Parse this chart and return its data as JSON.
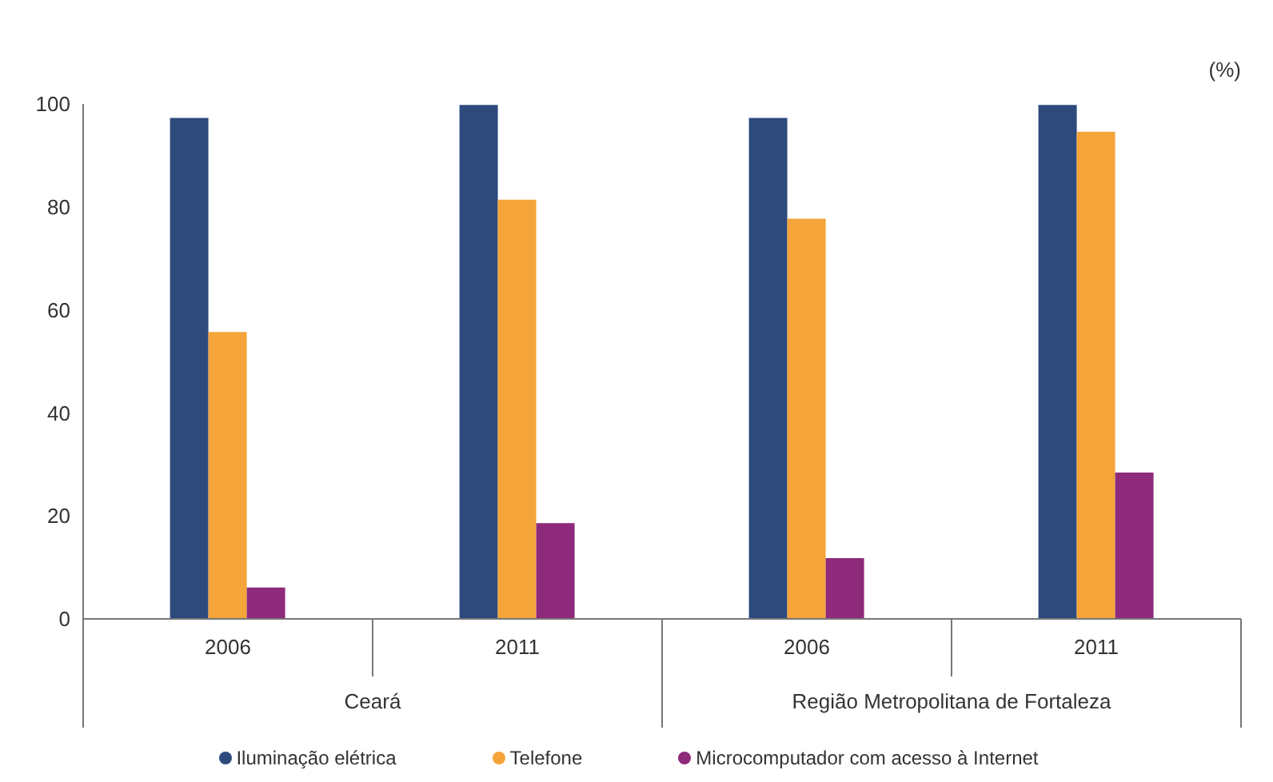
{
  "chart_data": {
    "type": "bar",
    "ylabel": "(%)",
    "categories": [
      "2006",
      "2011",
      "2006",
      "2011"
    ],
    "series": [
      {
        "name": "Iluminação elétrica",
        "color": "#2e4a7d",
        "values": [
          97.3,
          99.8,
          97.3,
          99.8
        ]
      },
      {
        "name": "Telefone",
        "color": "#f5a43a",
        "values": [
          55.7,
          81.4,
          77.7,
          94.6
        ]
      },
      {
        "name": "Microcomputador com acesso à Internet",
        "color": "#8e2a7a",
        "values": [
          6.1,
          18.6,
          11.8,
          28.4
        ]
      }
    ],
    "annotations": [
      "Ceará",
      "Região Metropolitana de Fortaleza"
    ],
    "ylim": [
      0,
      100
    ],
    "yticks": [
      0,
      20,
      40,
      60,
      80,
      100
    ],
    "grid": false,
    "legend": "bottom"
  }
}
